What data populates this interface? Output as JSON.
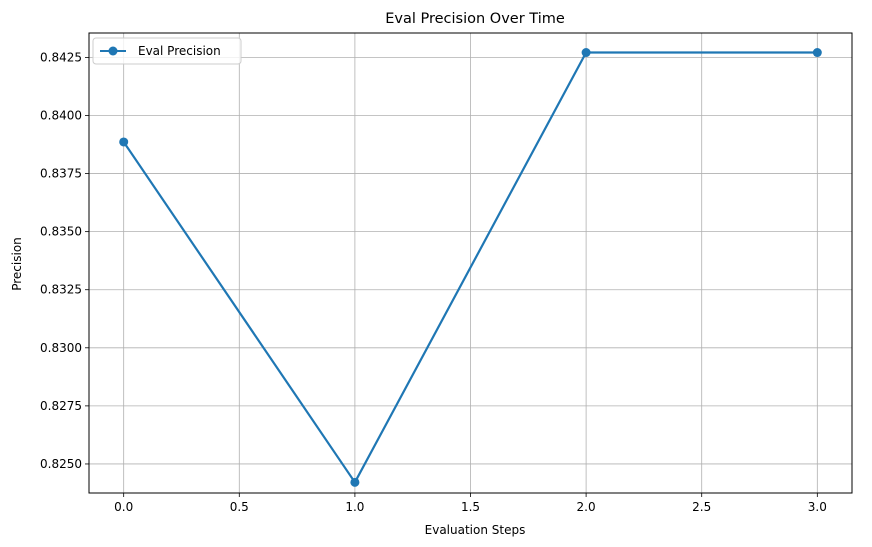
{
  "chart_data": {
    "type": "line",
    "title": "Eval Precision Over Time",
    "xlabel": "Evaluation Steps",
    "ylabel": "Precision",
    "x": [
      0,
      1,
      2,
      3
    ],
    "series": [
      {
        "name": "Eval Precision",
        "color": "#1f77b4",
        "marker": "circle",
        "values": [
          0.83886,
          0.82421,
          0.84271,
          0.84271
        ]
      }
    ],
    "xlim": [
      -0.15,
      3.15
    ],
    "ylim": [
      0.82375,
      0.84355
    ],
    "xticks": [
      0.0,
      0.5,
      1.0,
      1.5,
      2.0,
      2.5,
      3.0
    ],
    "xtick_labels": [
      "0.0",
      "0.5",
      "1.0",
      "1.5",
      "2.0",
      "2.5",
      "3.0"
    ],
    "yticks": [
      0.825,
      0.8275,
      0.83,
      0.8325,
      0.835,
      0.8375,
      0.84,
      0.8425
    ],
    "ytick_labels": [
      "0.8250",
      "0.8275",
      "0.8300",
      "0.8325",
      "0.8350",
      "0.8375",
      "0.8400",
      "0.8425"
    ],
    "grid": true,
    "legend_position": "top-left"
  }
}
